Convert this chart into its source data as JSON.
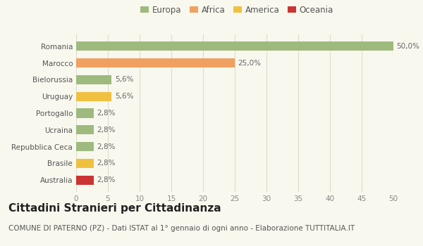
{
  "categories": [
    "Australia",
    "Brasile",
    "Repubblica Ceca",
    "Ucraina",
    "Portogallo",
    "Uruguay",
    "Bielorussia",
    "Marocco",
    "Romania"
  ],
  "values": [
    2.8,
    2.8,
    2.8,
    2.8,
    2.8,
    5.6,
    5.6,
    25.0,
    50.0
  ],
  "colors": [
    "#cc3333",
    "#f0c040",
    "#9eba7e",
    "#9eba7e",
    "#9eba7e",
    "#f0c040",
    "#9eba7e",
    "#f0a060",
    "#9eba7e"
  ],
  "labels": [
    "2,8%",
    "2,8%",
    "2,8%",
    "2,8%",
    "2,8%",
    "5,6%",
    "5,6%",
    "25,0%",
    "50,0%"
  ],
  "legend_labels": [
    "Europa",
    "Africa",
    "America",
    "Oceania"
  ],
  "legend_colors": [
    "#9eba7e",
    "#f0a060",
    "#f0c040",
    "#cc3333"
  ],
  "xlim": [
    0,
    50
  ],
  "xticks": [
    0,
    5,
    10,
    15,
    20,
    25,
    30,
    35,
    40,
    45,
    50
  ],
  "title": "Cittadini Stranieri per Cittadinanza",
  "subtitle": "COMUNE DI PATERNO (PZ) - Dati ISTAT al 1° gennaio di ogni anno - Elaborazione TUTTITALIA.IT",
  "background_color": "#f8f8ee",
  "bar_height": 0.55,
  "title_fontsize": 11,
  "subtitle_fontsize": 7.5,
  "label_fontsize": 7.5,
  "tick_fontsize": 7.5,
  "legend_fontsize": 8.5,
  "ylabel_fontsize": 7.5
}
